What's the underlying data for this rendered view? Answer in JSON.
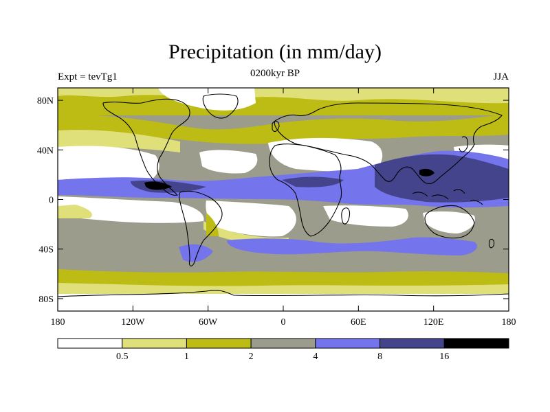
{
  "title": "Precipitation (in mm/day)",
  "subtitle_left": "Expt = tevTg1",
  "subtitle_center": "0200kyr BP",
  "subtitle_right": "JJA",
  "lat_ticks": [
    {
      "label": "80N",
      "lat": 80
    },
    {
      "label": "40N",
      "lat": 40
    },
    {
      "label": "0",
      "lat": 0
    },
    {
      "label": "40S",
      "lat": -40
    },
    {
      "label": "80S",
      "lat": -80
    }
  ],
  "lon_ticks": [
    {
      "label": "180",
      "lon": -180
    },
    {
      "label": "120W",
      "lon": -120
    },
    {
      "label": "60W",
      "lon": -60
    },
    {
      "label": "0",
      "lon": 0
    },
    {
      "label": "60E",
      "lon": 60
    },
    {
      "label": "120E",
      "lon": 120
    },
    {
      "label": "180",
      "lon": 180
    }
  ],
  "colorbar": {
    "colors": [
      "#ffffff",
      "#e0e07a",
      "#bcbc14",
      "#9c9c8c",
      "#7474ec",
      "#44448c",
      "#000000"
    ],
    "labels": [
      {
        "text": "0.5",
        "boundary": 1
      },
      {
        "text": "1",
        "boundary": 2
      },
      {
        "text": "2",
        "boundary": 3
      },
      {
        "text": "4",
        "boundary": 4
      },
      {
        "text": "8",
        "boundary": 5
      },
      {
        "text": "16",
        "boundary": 6
      }
    ]
  }
}
